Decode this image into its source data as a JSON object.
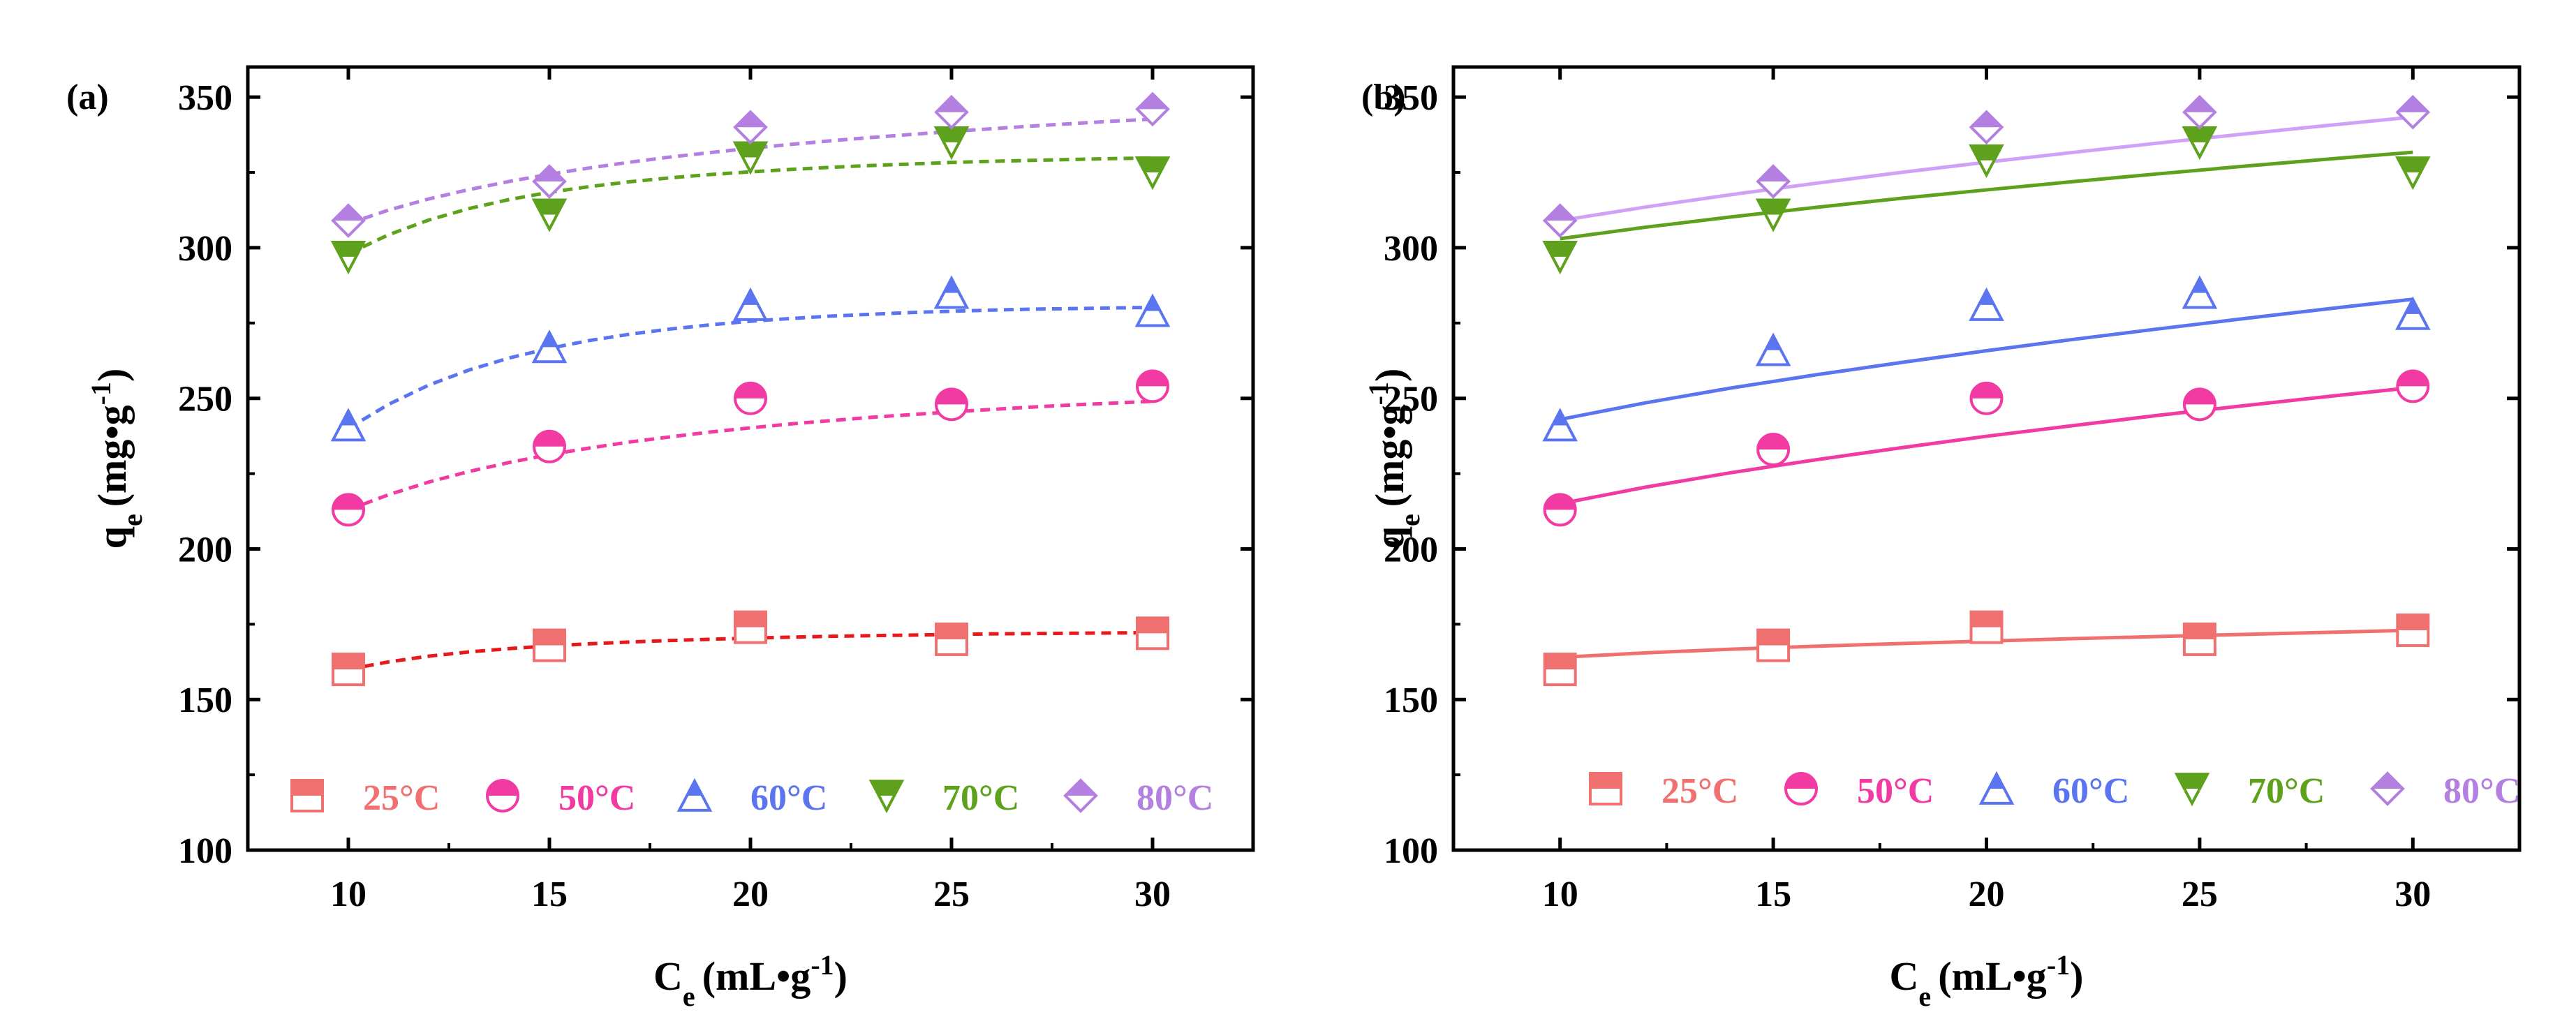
{
  "chart_data": [
    {
      "panel_label": "(a)",
      "type": "scatter",
      "xlabel": {
        "main": "C",
        "sub": "e",
        "unit": "(mL•g",
        "exp": "-1",
        "close": ")"
      },
      "ylabel": {
        "main": "q",
        "sub": "e",
        "unit": "(mg•g",
        "exp": "-1",
        "close": ")"
      },
      "xlim": [
        7.5,
        32.5
      ],
      "ylim": [
        100,
        360
      ],
      "xticks": [
        10,
        15,
        20,
        25,
        30
      ],
      "yticks": [
        100,
        150,
        200,
        250,
        300,
        350
      ],
      "fit_style": "dashed",
      "legend_position": "bottom",
      "x": [
        10,
        15,
        20,
        25,
        30
      ],
      "series": [
        {
          "name": "25°C",
          "color": "#f07070",
          "fit_color": "#e8191b",
          "marker": "square",
          "values": [
            160,
            168,
            174,
            170,
            172
          ],
          "fit": [
            [
              10,
              160
            ],
            [
              11,
              162.5
            ],
            [
              12,
              164.4
            ],
            [
              13,
              165.8
            ],
            [
              14,
              166.9
            ],
            [
              15,
              167.8
            ],
            [
              16,
              168.5
            ],
            [
              17,
              169.1
            ],
            [
              18,
              169.6
            ],
            [
              19,
              170.0
            ],
            [
              20,
              170.4
            ],
            [
              21,
              170.7
            ],
            [
              22,
              171.0
            ],
            [
              23,
              171.2
            ],
            [
              24,
              171.4
            ],
            [
              25,
              171.6
            ],
            [
              26,
              171.8
            ],
            [
              27,
              171.9
            ],
            [
              28,
              172.0
            ],
            [
              29,
              172.1
            ],
            [
              30,
              172.2
            ]
          ]
        },
        {
          "name": "50°C",
          "color": "#f23aa3",
          "fit_color": "#f23aa3",
          "marker": "circle",
          "values": [
            213,
            234,
            250,
            248,
            254
          ],
          "fit": [
            [
              10,
              213
            ],
            [
              11,
              218
            ],
            [
              12,
              222.2
            ],
            [
              13,
              225.7
            ],
            [
              14,
              228.7
            ],
            [
              15,
              231.3
            ],
            [
              16,
              233.5
            ],
            [
              17,
              235.5
            ],
            [
              18,
              237.2
            ],
            [
              19,
              238.8
            ],
            [
              20,
              240.2
            ],
            [
              21,
              241.5
            ],
            [
              22,
              242.6
            ],
            [
              23,
              243.7
            ],
            [
              24,
              244.6
            ],
            [
              25,
              245.5
            ],
            [
              26,
              246.3
            ],
            [
              27,
              247.1
            ],
            [
              28,
              247.8
            ],
            [
              29,
              248.4
            ],
            [
              30,
              249.0
            ]
          ]
        },
        {
          "name": "60°C",
          "color": "#5b74f0",
          "fit_color": "#5b74f0",
          "marker": "triangle-up",
          "values": [
            241,
            267,
            281,
            285,
            279
          ],
          "fit": [
            [
              10,
              240
            ],
            [
              11,
              248
            ],
            [
              12,
              254.4
            ],
            [
              13,
              259.4
            ],
            [
              14,
              263.4
            ],
            [
              15,
              266.6
            ],
            [
              16,
              269.2
            ],
            [
              17,
              271.3
            ],
            [
              18,
              273.0
            ],
            [
              19,
              274.4
            ],
            [
              20,
              275.6
            ],
            [
              21,
              276.5
            ],
            [
              22,
              277.3
            ],
            [
              23,
              277.9
            ],
            [
              24,
              278.5
            ],
            [
              25,
              278.9
            ],
            [
              26,
              279.3
            ],
            [
              27,
              279.6
            ],
            [
              28,
              279.8
            ],
            [
              29,
              280.0
            ],
            [
              30,
              280.2
            ]
          ]
        },
        {
          "name": "70°C",
          "color": "#5da11d",
          "fit_color": "#5da11d",
          "marker": "triangle-down",
          "values": [
            297,
            311,
            330,
            335,
            325
          ],
          "fit": [
            [
              10,
              298
            ],
            [
              11,
              304.3
            ],
            [
              12,
              309.2
            ],
            [
              13,
              313.0
            ],
            [
              14,
              316.0
            ],
            [
              15,
              318.4
            ],
            [
              16,
              320.3
            ],
            [
              17,
              321.9
            ],
            [
              18,
              323.2
            ],
            [
              19,
              324.3
            ],
            [
              20,
              325.2
            ],
            [
              21,
              326.0
            ],
            [
              22,
              326.7
            ],
            [
              23,
              327.3
            ],
            [
              24,
              327.8
            ],
            [
              25,
              328.3
            ],
            [
              26,
              328.7
            ],
            [
              27,
              329.0
            ],
            [
              28,
              329.3
            ],
            [
              29,
              329.6
            ],
            [
              30,
              329.8
            ]
          ]
        },
        {
          "name": "80°C",
          "color": "#b37fe0",
          "fit_color": "#b37fe0",
          "marker": "diamond",
          "values": [
            309,
            322,
            340,
            345,
            346
          ],
          "fit": [
            [
              10,
              308
            ],
            [
              11,
              312.5
            ],
            [
              12,
              316.2
            ],
            [
              13,
              319.3
            ],
            [
              14,
              322.0
            ],
            [
              15,
              324.4
            ],
            [
              16,
              326.5
            ],
            [
              17,
              328.4
            ],
            [
              18,
              330.1
            ],
            [
              19,
              331.6
            ],
            [
              20,
              333.0
            ],
            [
              21,
              334.3
            ],
            [
              22,
              335.5
            ],
            [
              23,
              336.6
            ],
            [
              24,
              337.6
            ],
            [
              25,
              338.6
            ],
            [
              26,
              339.5
            ],
            [
              27,
              340.4
            ],
            [
              28,
              341.2
            ],
            [
              29,
              342.0
            ],
            [
              30,
              342.7
            ]
          ]
        }
      ]
    },
    {
      "panel_label": "(b)",
      "type": "scatter",
      "xlabel": {
        "main": "C",
        "sub": "e",
        "unit": "(mL•g",
        "exp": "-1",
        "close": ")"
      },
      "ylabel": {
        "main": "q",
        "sub": "e",
        "unit": "(mg•g",
        "exp": "-1",
        "close": ")"
      },
      "xlim": [
        7.5,
        32.5
      ],
      "ylim": [
        100,
        360
      ],
      "xticks": [
        10,
        15,
        20,
        25,
        30
      ],
      "yticks": [
        100,
        150,
        200,
        250,
        300,
        350
      ],
      "fit_style": "solid",
      "legend_position": "bottom",
      "x": [
        10,
        15,
        20,
        25,
        30
      ],
      "series": [
        {
          "name": "25°C",
          "color": "#f07070",
          "fit_color": "#f07070",
          "marker": "square",
          "values": [
            160,
            168,
            174,
            170,
            173
          ],
          "fit": [
            [
              10,
              164
            ],
            [
              12,
              165.5
            ],
            [
              14,
              166.7
            ],
            [
              16,
              167.7
            ],
            [
              18,
              168.6
            ],
            [
              20,
              169.4
            ],
            [
              22,
              170.2
            ],
            [
              24,
              170.9
            ],
            [
              26,
              171.6
            ],
            [
              28,
              172.3
            ],
            [
              30,
              173.0
            ]
          ]
        },
        {
          "name": "50°C",
          "color": "#f23aa3",
          "fit_color": "#f23aa3",
          "marker": "circle",
          "values": [
            213,
            233,
            250,
            248,
            254
          ],
          "fit": [
            [
              10,
              215
            ],
            [
              12,
              220.5
            ],
            [
              14,
              225.3
            ],
            [
              16,
              229.6
            ],
            [
              18,
              233.6
            ],
            [
              20,
              237.4
            ],
            [
              22,
              240.9
            ],
            [
              24,
              244.3
            ],
            [
              26,
              247.5
            ],
            [
              28,
              250.6
            ],
            [
              30,
              253.6
            ]
          ]
        },
        {
          "name": "60°C",
          "color": "#5b74f0",
          "fit_color": "#5b74f0",
          "marker": "triangle-up",
          "values": [
            241,
            266,
            281,
            285,
            278
          ],
          "fit": [
            [
              10,
              243
            ],
            [
              12,
              248.5
            ],
            [
              14,
              253.4
            ],
            [
              16,
              257.8
            ],
            [
              18,
              261.9
            ],
            [
              20,
              265.8
            ],
            [
              22,
              269.5
            ],
            [
              24,
              273.0
            ],
            [
              26,
              276.4
            ],
            [
              28,
              279.7
            ],
            [
              30,
              282.9
            ]
          ]
        },
        {
          "name": "70°C",
          "color": "#5da11d",
          "fit_color": "#5da11d",
          "marker": "triangle-down",
          "values": [
            297,
            311,
            329,
            335,
            325
          ],
          "fit": [
            [
              10,
              303
            ],
            [
              12,
              306.8
            ],
            [
              14,
              310.2
            ],
            [
              16,
              313.4
            ],
            [
              18,
              316.4
            ],
            [
              20,
              319.2
            ],
            [
              22,
              321.9
            ],
            [
              24,
              324.5
            ],
            [
              26,
              327.0
            ],
            [
              28,
              329.4
            ],
            [
              30,
              331.7
            ]
          ]
        },
        {
          "name": "80°C",
          "color": "#b37fe0",
          "fit_color": "#d0a2f5",
          "marker": "diamond",
          "values": [
            309,
            322,
            340,
            345,
            345
          ],
          "fit": [
            [
              10,
              309
            ],
            [
              12,
              313.5
            ],
            [
              14,
              317.6
            ],
            [
              16,
              321.4
            ],
            [
              18,
              325.0
            ],
            [
              20,
              328.4
            ],
            [
              22,
              331.6
            ],
            [
              24,
              334.7
            ],
            [
              26,
              337.7
            ],
            [
              28,
              340.6
            ],
            [
              30,
              343.4
            ]
          ]
        }
      ]
    }
  ]
}
